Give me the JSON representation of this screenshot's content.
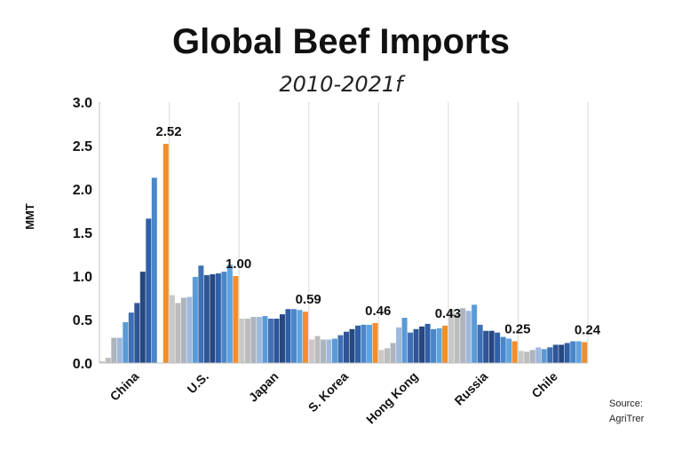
{
  "chart_data": {
    "type": "bar",
    "title": "Global Beef Imports",
    "subtitle": "2010-2021f",
    "ylabel": "MMT",
    "xlabel": "",
    "ylim": [
      0,
      3.0
    ],
    "yticks": [
      "0.0",
      "0.5",
      "1.0",
      "1.5",
      "2.0",
      "2.5",
      "3.0"
    ],
    "grid": "vertical",
    "legend": "none",
    "categories": [
      "China",
      "U.S.",
      "Japan",
      "S. Korea",
      "Hong Kong",
      "Russia",
      "Chile"
    ],
    "series": [
      {
        "values": [
          0.02,
          0.78,
          0.51,
          0.27,
          0.15,
          0.62,
          0.14
        ],
        "color": "#c8c8c8"
      },
      {
        "values": [
          0.06,
          0.69,
          0.51,
          0.31,
          0.17,
          0.57,
          0.13
        ],
        "color": "#bcbcbc"
      },
      {
        "values": [
          0.29,
          0.75,
          0.53,
          0.27,
          0.23,
          0.63,
          0.15
        ],
        "color": "#aeb4be"
      },
      {
        "values": [
          0.29,
          0.76,
          0.53,
          0.27,
          0.41,
          0.6,
          0.18
        ],
        "color": "#9fb9dc"
      },
      {
        "values": [
          0.47,
          0.99,
          0.54,
          0.28,
          0.52,
          0.67,
          0.16
        ],
        "color": "#5b9bd5"
      },
      {
        "values": [
          0.58,
          1.12,
          0.51,
          0.32,
          0.35,
          0.44,
          0.18
        ],
        "color": "#3f6fb5"
      },
      {
        "values": [
          0.69,
          1.01,
          0.51,
          0.36,
          0.39,
          0.37,
          0.21
        ],
        "color": "#2e5597"
      },
      {
        "values": [
          1.05,
          1.02,
          0.56,
          0.39,
          0.42,
          0.37,
          0.21
        ],
        "color": "#264780"
      },
      {
        "values": [
          1.66,
          1.03,
          0.62,
          0.43,
          0.45,
          0.35,
          0.23
        ],
        "color": "#2f5fa8"
      },
      {
        "values": [
          2.13,
          1.05,
          0.62,
          0.44,
          0.39,
          0.3,
          0.25
        ],
        "color": "#4a86c8"
      },
      {
        "values": [
          null,
          1.13,
          0.61,
          0.44,
          0.4,
          0.28,
          0.25
        ],
        "color": "#5fa3e0"
      },
      {
        "values": [
          2.52,
          1.0,
          0.59,
          0.46,
          0.43,
          0.25,
          0.24
        ],
        "color": "#f28e2b"
      }
    ],
    "data_labels": [
      "2.52",
      "1.00",
      "0.59",
      "0.46",
      "0.43",
      "0.25",
      "0.24"
    ]
  },
  "source": {
    "line1": "Source:",
    "line2": "AgriTrer"
  }
}
